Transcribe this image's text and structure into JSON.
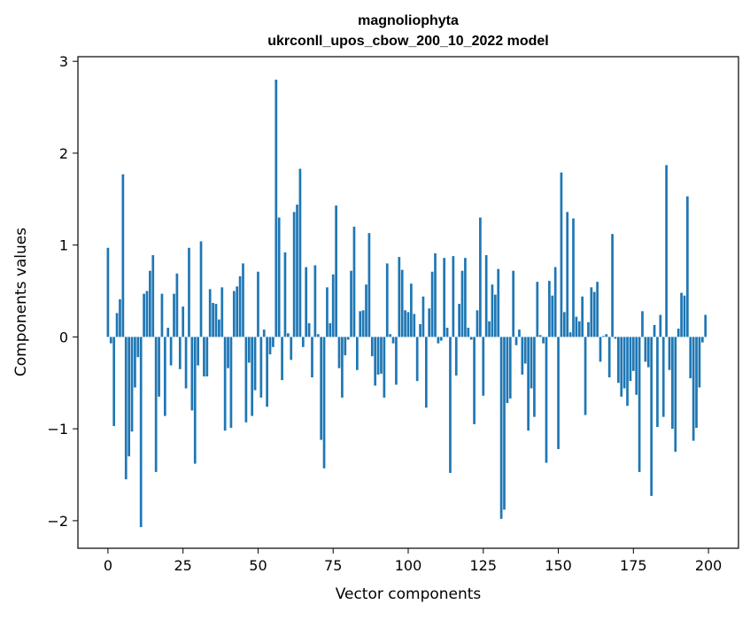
{
  "chart_data": {
    "type": "bar",
    "title": "magnoliophyta",
    "subtitle": "ukrconll_upos_cbow_200_10_2022 model",
    "xlabel": "Vector components",
    "ylabel": "Components values",
    "xlim": [
      -10,
      210
    ],
    "ylim": [
      -2.3,
      3.05
    ],
    "xticks": [
      0,
      25,
      50,
      75,
      100,
      125,
      150,
      175,
      200
    ],
    "xtick_labels": [
      "0",
      "25",
      "50",
      "75",
      "100",
      "125",
      "150",
      "175",
      "200"
    ],
    "yticks": [
      -2,
      -1,
      0,
      1,
      2,
      3
    ],
    "ytick_labels": [
      "−2",
      "−1",
      "0",
      "1",
      "2",
      "3"
    ],
    "grid": false,
    "bar_color": "#1f77b4",
    "x": [
      0,
      1,
      2,
      3,
      4,
      5,
      6,
      7,
      8,
      9,
      10,
      11,
      12,
      13,
      14,
      15,
      16,
      17,
      18,
      19,
      20,
      21,
      22,
      23,
      24,
      25,
      26,
      27,
      28,
      29,
      30,
      31,
      32,
      33,
      34,
      35,
      36,
      37,
      38,
      39,
      40,
      41,
      42,
      43,
      44,
      45,
      46,
      47,
      48,
      49,
      50,
      51,
      52,
      53,
      54,
      55,
      56,
      57,
      58,
      59,
      60,
      61,
      62,
      63,
      64,
      65,
      66,
      67,
      68,
      69,
      70,
      71,
      72,
      73,
      74,
      75,
      76,
      77,
      78,
      79,
      80,
      81,
      82,
      83,
      84,
      85,
      86,
      87,
      88,
      89,
      90,
      91,
      92,
      93,
      94,
      95,
      96,
      97,
      98,
      99,
      100,
      101,
      102,
      103,
      104,
      105,
      106,
      107,
      108,
      109,
      110,
      111,
      112,
      113,
      114,
      115,
      116,
      117,
      118,
      119,
      120,
      121,
      122,
      123,
      124,
      125,
      126,
      127,
      128,
      129,
      130,
      131,
      132,
      133,
      134,
      135,
      136,
      137,
      138,
      139,
      140,
      141,
      142,
      143,
      144,
      145,
      146,
      147,
      148,
      149,
      150,
      151,
      152,
      153,
      154,
      155,
      156,
      157,
      158,
      159,
      160,
      161,
      162,
      163,
      164,
      165,
      166,
      167,
      168,
      169,
      170,
      171,
      172,
      173,
      174,
      175,
      176,
      177,
      178,
      179,
      180,
      181,
      182,
      183,
      184,
      185,
      186,
      187,
      188,
      189,
      190,
      191,
      192,
      193,
      194,
      195,
      196,
      197,
      198,
      199
    ],
    "values": [
      0.97,
      -0.07,
      -0.97,
      0.26,
      0.41,
      1.77,
      -1.55,
      -1.3,
      -1.03,
      -0.55,
      -0.22,
      -2.07,
      0.47,
      0.5,
      0.72,
      0.89,
      -1.47,
      -0.65,
      0.47,
      -0.86,
      0.1,
      -0.31,
      0.47,
      0.69,
      -0.35,
      0.33,
      -0.56,
      0.97,
      -0.8,
      -1.38,
      -0.31,
      1.04,
      -0.43,
      -0.43,
      0.52,
      0.37,
      0.36,
      0.19,
      0.54,
      -1.02,
      -0.34,
      -0.99,
      0.5,
      0.55,
      0.66,
      0.8,
      -0.93,
      -0.28,
      -0.86,
      -0.58,
      0.71,
      -0.66,
      0.08,
      -0.76,
      -0.19,
      -0.11,
      2.8,
      1.3,
      -0.47,
      0.92,
      0.04,
      -0.25,
      1.36,
      1.44,
      1.83,
      -0.11,
      0.76,
      0.15,
      -0.44,
      0.78,
      0.03,
      -1.12,
      -1.43,
      0.54,
      0.15,
      0.68,
      1.43,
      -0.34,
      -0.66,
      -0.2,
      -0.03,
      0.72,
      1.2,
      -0.36,
      0.28,
      0.29,
      0.57,
      1.13,
      -0.21,
      -0.53,
      -0.41,
      -0.4,
      -0.66,
      0.8,
      0.03,
      -0.07,
      -0.52,
      0.87,
      0.73,
      0.29,
      0.27,
      0.58,
      0.25,
      -0.48,
      0.14,
      0.44,
      -0.77,
      0.31,
      0.71,
      0.91,
      -0.07,
      -0.04,
      0.86,
      0.1,
      -1.48,
      0.88,
      -0.42,
      0.36,
      0.72,
      0.86,
      0.1,
      -0.03,
      -0.95,
      0.29,
      1.3,
      -0.64,
      0.89,
      0.17,
      0.57,
      0.46,
      0.74,
      -1.98,
      -1.88,
      -0.72,
      -0.67,
      0.72,
      -0.09,
      0.08,
      -0.41,
      -0.29,
      -1.02,
      -0.56,
      -0.87,
      0.6,
      0.02,
      -0.07,
      -1.37,
      0.61,
      0.45,
      0.76,
      -1.22,
      1.79,
      0.27,
      1.36,
      0.05,
      1.29,
      0.22,
      0.17,
      0.44,
      -0.85,
      0.16,
      0.54,
      0.49,
      0.6,
      -0.27,
      0.01,
      0.03,
      -0.44,
      1.12,
      -0.02,
      -0.5,
      -0.65,
      -0.56,
      -0.75,
      -0.48,
      -0.37,
      -0.63,
      -1.47,
      0.28,
      -0.27,
      -0.33,
      -1.73,
      0.13,
      -0.98,
      0.24,
      -0.87,
      1.87,
      -0.36,
      -1.0,
      -1.25,
      0.09,
      0.48,
      0.45,
      1.53,
      -0.45,
      -1.13,
      -0.99,
      -0.55,
      -0.06,
      0.24
    ]
  }
}
